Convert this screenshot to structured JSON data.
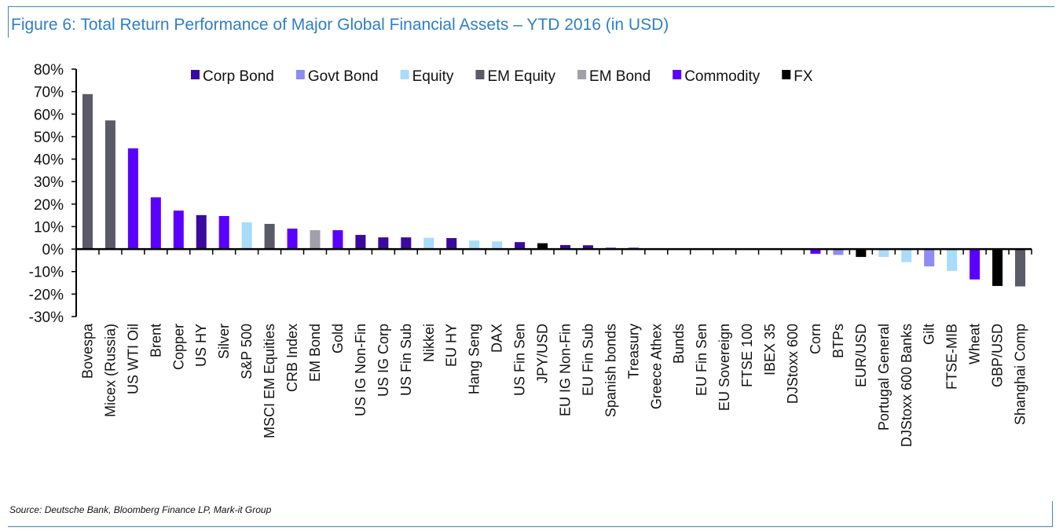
{
  "title": "Figure 6: Total Return Performance of Major Global Financial Assets – YTD 2016 (in USD)",
  "source": "Source: Deutsche Bank, Bloomberg Finance LP, Mark-it Group",
  "chart_data": {
    "type": "bar",
    "title": "Figure 6: Total Return Performance of Major Global Financial Assets – YTD 2016 (in USD)",
    "xlabel": "",
    "ylabel": "",
    "ylim": [
      -30,
      80
    ],
    "yticks": [
      "80%",
      "70%",
      "60%",
      "50%",
      "40%",
      "30%",
      "20%",
      "10%",
      "0%",
      "-10%",
      "-20%",
      "-30%"
    ],
    "legend_position": "top",
    "groups": [
      {
        "name": "Corp Bond",
        "color": "#3a0aa0"
      },
      {
        "name": "Govt Bond",
        "color": "#8c8cf2"
      },
      {
        "name": "Equity",
        "color": "#a9dbfa"
      },
      {
        "name": "EM Equity",
        "color": "#5b5a68"
      },
      {
        "name": "EM Bond",
        "color": "#a1a0aa"
      },
      {
        "name": "Commodity",
        "color": "#5a00ff"
      },
      {
        "name": "FX",
        "color": "#000000"
      }
    ],
    "categories": [
      "Bovespa",
      "Micex (Russia)",
      "US WTI Oil",
      "Brent",
      "Copper",
      "US HY",
      "Silver",
      "S&P 500",
      "MSCI EM Equities",
      "CRB Index",
      "EM Bond",
      "Gold",
      "US IG Non-Fin",
      "US IG Corp",
      "US Fin Sub",
      "Nikkei",
      "EU HY",
      "Hang Seng",
      "DAX",
      "US Fin Sen",
      "JPY/USD",
      "EU IG Non-Fin",
      "EU Fin Sub",
      "Spanish bonds",
      "Treasury",
      "Greece Athex",
      "Bunds",
      "EU Fin Sen",
      "EU Sovereign",
      "FTSE 100",
      "IBEX 35",
      "DJStoxx 600",
      "Corn",
      "BTPs",
      "EUR/USD",
      "Portugal General",
      "DJStoxx 600 Banks",
      "Gilt",
      "FTSE-MIB",
      "Wheat",
      "GBP/USD",
      "Shanghai Comp"
    ],
    "values": [
      68.9,
      57.2,
      44.8,
      23.0,
      17.1,
      15.1,
      14.7,
      11.9,
      11.2,
      9.1,
      8.4,
      8.4,
      6.3,
      5.2,
      5.2,
      5.0,
      4.9,
      3.8,
      3.4,
      3.1,
      2.6,
      1.8,
      1.7,
      0.8,
      0.8,
      0.4,
      0.3,
      0.1,
      -0.1,
      -0.1,
      -0.3,
      -0.4,
      -2.1,
      -2.6,
      -3.5,
      -3.5,
      -5.8,
      -7.7,
      -9.7,
      -13.5,
      -16.4,
      -16.6
    ],
    "group_of": [
      "EM Equity",
      "EM Equity",
      "Commodity",
      "Commodity",
      "Commodity",
      "Corp Bond",
      "Commodity",
      "Equity",
      "EM Equity",
      "Commodity",
      "EM Bond",
      "Commodity",
      "Corp Bond",
      "Corp Bond",
      "Corp Bond",
      "Equity",
      "Corp Bond",
      "Equity",
      "Equity",
      "Corp Bond",
      "FX",
      "Corp Bond",
      "Corp Bond",
      "Govt Bond",
      "Govt Bond",
      "Equity",
      "Govt Bond",
      "Corp Bond",
      "Govt Bond",
      "Equity",
      "Equity",
      "Equity",
      "Commodity",
      "Govt Bond",
      "FX",
      "Equity",
      "Equity",
      "Govt Bond",
      "Equity",
      "Commodity",
      "FX",
      "EM Equity"
    ]
  }
}
